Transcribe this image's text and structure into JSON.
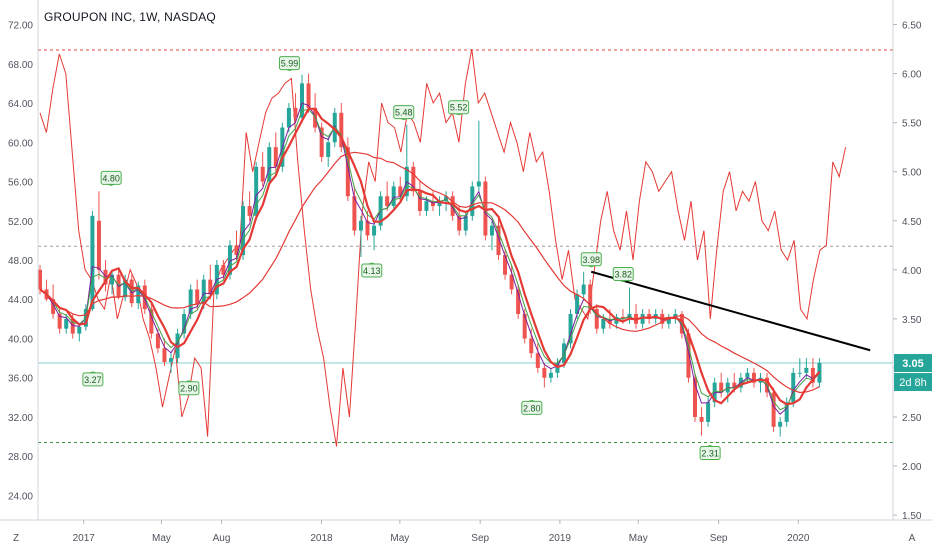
{
  "title": "GROUPON INC, 1W, NASDAQ",
  "chart_data": {
    "type": "candlestick",
    "title": "GROUPON INC, 1W, NASDAQ",
    "left_axis": {
      "ticks": [
        "72.00",
        "68.00",
        "64.00",
        "60.00",
        "56.00",
        "52.00",
        "48.00",
        "44.00",
        "40.00",
        "36.00",
        "32.00",
        "28.00",
        "24.00"
      ],
      "range": [
        21.5,
        74.5
      ]
    },
    "right_axis": {
      "ticks": [
        "6.50",
        "6.00",
        "5.50",
        "5.00",
        "4.50",
        "4.00",
        "3.50",
        "3.00",
        "2.50",
        "2.00",
        "1.50"
      ],
      "range": [
        1.45,
        6.75
      ]
    },
    "x_axis": {
      "labels": [
        "2017",
        "May",
        "Aug",
        "2018",
        "May",
        "Sep",
        "2019",
        "May",
        "Sep",
        "2020"
      ],
      "range": [
        "2016-10-24",
        "2020-05-25"
      ]
    },
    "price_label": "3.05",
    "countdown_label": "2d 8h",
    "corner_labels": {
      "left": "Z",
      "right": "A"
    },
    "pivot_labels": [
      {
        "text": "3.27",
        "date": "2017-01-16",
        "price": 2.99,
        "position": "below"
      },
      {
        "text": "4.80",
        "date": "2017-02-13",
        "price": 4.83,
        "position": "above"
      },
      {
        "text": "2.90",
        "date": "2017-06-12",
        "price": 2.9,
        "position": "below"
      },
      {
        "text": "5.99",
        "date": "2017-11-13",
        "price": 6.0,
        "position": "above"
      },
      {
        "text": "4.13",
        "date": "2018-03-19",
        "price": 4.1,
        "position": "below"
      },
      {
        "text": "5.48",
        "date": "2018-05-07",
        "price": 5.5,
        "position": "above"
      },
      {
        "text": "5.52",
        "date": "2018-07-30",
        "price": 5.55,
        "position": "above"
      },
      {
        "text": "2.80",
        "date": "2018-11-19",
        "price": 2.7,
        "position": "below"
      },
      {
        "text": "3.98",
        "date": "2019-02-18",
        "price": 4.0,
        "position": "above"
      },
      {
        "text": "3.82",
        "date": "2019-04-08",
        "price": 3.85,
        "position": "above"
      },
      {
        "text": "2.31",
        "date": "2019-08-19",
        "price": 2.24,
        "position": "below"
      }
    ],
    "horizontal_levels": [
      {
        "price": 6.24,
        "style": "dashed",
        "color": "#e0453b"
      },
      {
        "price": 4.24,
        "style": "dashed",
        "color": "#9e9e9e"
      },
      {
        "price": 3.05,
        "style": "solid",
        "color": "#7fd1ce"
      },
      {
        "price": 2.24,
        "style": "dashed",
        "color": "#388e3c"
      }
    ],
    "trendline": {
      "from": {
        "date": "2019-02-18",
        "price": 3.98
      },
      "to": {
        "date": "2020-04-20",
        "price": 3.18
      },
      "color": "#000000"
    },
    "candles": [
      [
        4.0,
        4.05,
        3.75,
        3.8
      ],
      [
        3.8,
        3.9,
        3.68,
        3.7
      ],
      [
        3.7,
        3.85,
        3.5,
        3.55
      ],
      [
        3.55,
        3.6,
        3.35,
        3.4
      ],
      [
        3.4,
        3.55,
        3.35,
        3.5
      ],
      [
        3.5,
        3.55,
        3.3,
        3.35
      ],
      [
        3.35,
        3.45,
        3.27,
        3.42
      ],
      [
        3.42,
        3.65,
        3.38,
        3.6
      ],
      [
        3.6,
        4.6,
        3.58,
        4.55
      ],
      [
        4.5,
        4.8,
        3.9,
        4.0
      ],
      [
        4.0,
        4.1,
        3.78,
        3.85
      ],
      [
        3.85,
        4.0,
        3.75,
        3.95
      ],
      [
        3.95,
        4.02,
        3.7,
        3.72
      ],
      [
        3.72,
        3.95,
        3.68,
        3.9
      ],
      [
        3.9,
        3.95,
        3.62,
        3.66
      ],
      [
        3.66,
        3.88,
        3.6,
        3.84
      ],
      [
        3.84,
        3.9,
        3.55,
        3.6
      ],
      [
        3.6,
        3.65,
        3.3,
        3.35
      ],
      [
        3.35,
        3.4,
        3.15,
        3.2
      ],
      [
        3.2,
        3.3,
        3.02,
        3.06
      ],
      [
        3.06,
        3.15,
        2.95,
        3.1
      ],
      [
        3.1,
        3.4,
        3.05,
        3.35
      ],
      [
        3.35,
        3.6,
        3.3,
        3.55
      ],
      [
        3.55,
        3.85,
        3.5,
        3.8
      ],
      [
        3.8,
        3.9,
        3.6,
        3.65
      ],
      [
        3.65,
        3.95,
        3.6,
        3.9
      ],
      [
        3.9,
        4.05,
        3.7,
        3.75
      ],
      [
        3.75,
        4.1,
        3.7,
        4.05
      ],
      [
        4.05,
        4.1,
        3.9,
        3.95
      ],
      [
        3.95,
        4.3,
        3.9,
        4.25
      ],
      [
        4.25,
        4.4,
        4.1,
        4.15
      ],
      [
        4.15,
        4.7,
        4.1,
        4.65
      ],
      [
        4.65,
        4.8,
        4.5,
        4.55
      ],
      [
        4.55,
        5.1,
        4.5,
        5.05
      ],
      [
        5.05,
        5.2,
        4.85,
        4.9
      ],
      [
        4.9,
        5.3,
        4.85,
        5.25
      ],
      [
        5.25,
        5.4,
        5.0,
        5.05
      ],
      [
        5.05,
        5.5,
        5.0,
        5.45
      ],
      [
        5.45,
        5.7,
        5.4,
        5.65
      ],
      [
        5.65,
        5.8,
        5.5,
        5.55
      ],
      [
        5.55,
        5.99,
        5.5,
        5.9
      ],
      [
        5.9,
        6.0,
        5.6,
        5.65
      ],
      [
        5.65,
        5.8,
        5.4,
        5.45
      ],
      [
        5.45,
        5.5,
        5.1,
        5.15
      ],
      [
        5.15,
        5.35,
        5.05,
        5.3
      ],
      [
        5.3,
        5.65,
        5.25,
        5.6
      ],
      [
        5.6,
        5.7,
        5.2,
        5.25
      ],
      [
        5.25,
        5.35,
        4.7,
        4.75
      ],
      [
        4.75,
        4.85,
        4.35,
        4.4
      ],
      [
        4.4,
        4.55,
        4.13,
        4.5
      ],
      [
        4.5,
        4.6,
        4.3,
        4.35
      ],
      [
        4.35,
        4.5,
        4.2,
        4.45
      ],
      [
        4.45,
        4.8,
        4.4,
        4.75
      ],
      [
        4.75,
        4.9,
        4.6,
        4.65
      ],
      [
        4.65,
        4.9,
        4.6,
        4.85
      ],
      [
        4.85,
        4.95,
        4.7,
        4.75
      ],
      [
        4.75,
        5.48,
        4.7,
        5.05
      ],
      [
        5.05,
        5.1,
        4.75,
        4.8
      ],
      [
        4.8,
        4.9,
        4.55,
        4.6
      ],
      [
        4.6,
        4.75,
        4.55,
        4.7
      ],
      [
        4.7,
        4.8,
        4.6,
        4.65
      ],
      [
        4.65,
        4.75,
        4.55,
        4.7
      ],
      [
        4.7,
        4.8,
        4.6,
        4.75
      ],
      [
        4.75,
        4.8,
        4.5,
        4.55
      ],
      [
        4.55,
        4.65,
        4.35,
        4.4
      ],
      [
        4.4,
        4.6,
        4.35,
        4.55
      ],
      [
        4.55,
        4.9,
        4.5,
        4.85
      ],
      [
        4.85,
        5.52,
        4.8,
        4.9
      ],
      [
        4.9,
        4.95,
        4.3,
        4.35
      ],
      [
        4.35,
        4.5,
        4.2,
        4.45
      ],
      [
        4.45,
        4.55,
        4.1,
        4.15
      ],
      [
        4.15,
        4.2,
        3.9,
        3.95
      ],
      [
        3.95,
        4.05,
        3.75,
        3.8
      ],
      [
        3.8,
        3.85,
        3.5,
        3.55
      ],
      [
        3.55,
        3.6,
        3.25,
        3.3
      ],
      [
        3.3,
        3.4,
        3.1,
        3.15
      ],
      [
        3.15,
        3.25,
        2.95,
        3.0
      ],
      [
        3.0,
        3.05,
        2.8,
        2.9
      ],
      [
        2.9,
        3.0,
        2.85,
        2.95
      ],
      [
        2.95,
        3.1,
        2.9,
        3.05
      ],
      [
        3.05,
        3.3,
        3.0,
        3.25
      ],
      [
        3.25,
        3.6,
        3.2,
        3.55
      ],
      [
        3.55,
        3.8,
        3.5,
        3.75
      ],
      [
        3.75,
        3.98,
        3.7,
        3.85
      ],
      [
        3.85,
        3.9,
        3.55,
        3.6
      ],
      [
        3.6,
        3.65,
        3.35,
        3.4
      ],
      [
        3.4,
        3.55,
        3.35,
        3.5
      ],
      [
        3.5,
        3.6,
        3.4,
        3.45
      ],
      [
        3.45,
        3.55,
        3.4,
        3.52
      ],
      [
        3.52,
        3.6,
        3.45,
        3.5
      ],
      [
        3.5,
        3.82,
        3.45,
        3.55
      ],
      [
        3.55,
        3.65,
        3.4,
        3.45
      ],
      [
        3.45,
        3.6,
        3.4,
        3.55
      ],
      [
        3.55,
        3.6,
        3.45,
        3.5
      ],
      [
        3.5,
        3.6,
        3.45,
        3.55
      ],
      [
        3.55,
        3.6,
        3.4,
        3.45
      ],
      [
        3.45,
        3.55,
        3.4,
        3.5
      ],
      [
        3.5,
        3.6,
        3.45,
        3.55
      ],
      [
        3.55,
        3.58,
        3.3,
        3.35
      ],
      [
        3.35,
        3.4,
        2.85,
        2.9
      ],
      [
        2.9,
        2.95,
        2.45,
        2.5
      ],
      [
        2.5,
        2.6,
        2.31,
        2.45
      ],
      [
        2.45,
        2.7,
        2.4,
        2.65
      ],
      [
        2.65,
        2.9,
        2.6,
        2.85
      ],
      [
        2.85,
        2.95,
        2.7,
        2.75
      ],
      [
        2.75,
        2.9,
        2.65,
        2.85
      ],
      [
        2.85,
        2.95,
        2.75,
        2.8
      ],
      [
        2.8,
        2.95,
        2.75,
        2.9
      ],
      [
        2.9,
        3.0,
        2.85,
        2.95
      ],
      [
        2.95,
        3.0,
        2.8,
        2.85
      ],
      [
        2.85,
        2.95,
        2.75,
        2.9
      ],
      [
        2.9,
        2.95,
        2.7,
        2.75
      ],
      [
        2.75,
        2.8,
        2.35,
        2.4
      ],
      [
        2.4,
        2.5,
        2.3,
        2.45
      ],
      [
        2.45,
        2.7,
        2.4,
        2.65
      ],
      [
        2.65,
        3.0,
        2.6,
        2.95
      ],
      [
        2.95,
        3.1,
        2.9,
        2.95
      ],
      [
        2.95,
        3.1,
        2.9,
        3.0
      ],
      [
        3.0,
        3.1,
        2.8,
        2.85
      ],
      [
        2.85,
        3.1,
        2.8,
        3.05
      ]
    ],
    "series": [
      {
        "color": "#7b1fa2",
        "values": []
      },
      {
        "color": "#43a047",
        "values": []
      },
      {
        "color": "#e53935",
        "values": []
      },
      {
        "color": "#e53935",
        "values": []
      }
    ],
    "oscillator_right_scale": [
      5.6,
      5.4,
      5.85,
      6.2,
      6.0,
      5.2,
      4.4,
      4.0,
      3.9,
      3.7,
      3.6,
      3.95,
      3.5,
      3.75,
      4.0,
      3.85,
      3.5,
      3.3,
      3.0,
      2.6,
      2.9,
      3.2,
      2.5,
      2.7,
      3.1,
      3.0,
      2.3,
      3.8,
      4.0,
      4.1,
      4.2,
      4.25,
      5.4,
      5.0,
      5.3,
      5.6,
      5.75,
      5.8,
      5.9,
      5.95,
      5.1,
      4.4,
      3.8,
      3.4,
      3.1,
      2.6,
      2.2,
      3.0,
      2.5,
      3.5,
      4.6,
      5.1,
      4.9,
      5.7,
      5.5,
      5.45,
      5.2,
      5.6,
      5.5,
      5.3,
      5.9,
      5.7,
      5.8,
      5.5,
      5.6,
      5.3,
      5.9,
      6.25,
      5.7,
      5.8,
      5.6,
      5.4,
      5.2,
      5.5,
      5.3,
      5.0,
      5.4,
      5.1,
      5.2,
      4.8,
      4.3,
      3.9,
      4.2,
      3.7,
      3.6,
      3.5,
      4.0,
      4.5,
      4.8,
      4.4,
      4.2,
      4.6,
      4.1,
      4.7,
      5.1,
      5.0,
      4.8,
      4.9,
      5.0,
      4.6,
      4.3,
      4.7,
      4.1,
      4.4,
      3.5,
      4.2,
      4.8,
      5.0,
      4.6,
      4.8,
      4.7,
      4.9,
      4.5,
      4.4,
      4.6,
      4.2,
      4.1,
      4.3,
      3.6,
      3.5,
      3.9,
      4.2,
      4.25,
      5.1,
      4.95,
      5.25
    ]
  }
}
